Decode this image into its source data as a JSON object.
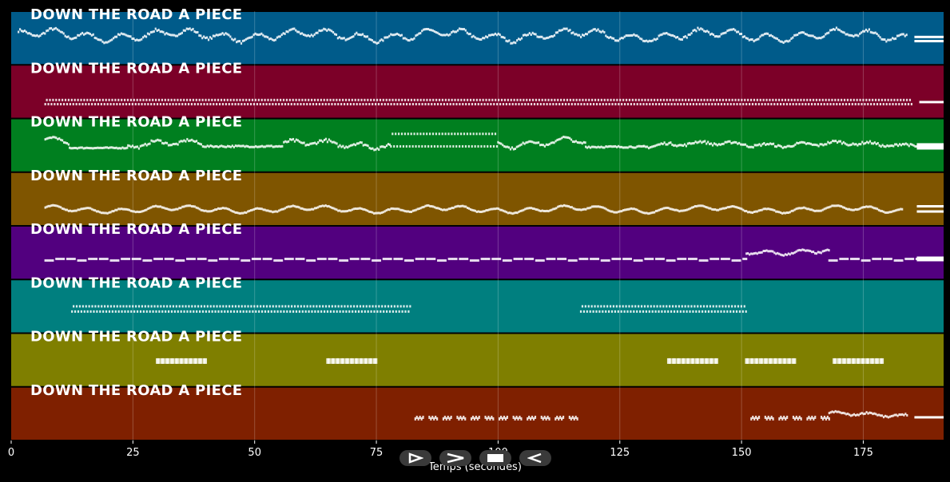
{
  "chart_data": {
    "type": "scatter",
    "xlabel": "Temps (secondes)",
    "xlim": [
      0,
      191.5
    ],
    "xticks": [
      0,
      25,
      50,
      75,
      100,
      125,
      150,
      175
    ],
    "grid": true,
    "lanes": [
      {
        "title": "DOWN THE ROAD A PIECE",
        "color": "#005b8a",
        "segments": [
          [
            1.5,
            184,
            0.55,
            0.12,
            0.4,
            1
          ]
        ],
        "tail": [
          [
            185.5,
            191.5,
            0.52
          ],
          [
            185.5,
            191.5,
            0.44
          ]
        ]
      },
      {
        "title": "DOWN THE ROAD A PIECE",
        "color": "#7c0028",
        "segments": [
          [
            7,
            185,
            0.3,
            0.04,
            0.6,
            2
          ]
        ],
        "tail": [
          [
            186.5,
            191.5,
            0.3
          ]
        ]
      },
      {
        "title": "DOWN THE ROAD A PIECE",
        "color": "#007f1f",
        "segments": [
          [
            7,
            12,
            0.55,
            0.1,
            0.3,
            1
          ],
          [
            12,
            24,
            0.45,
            0.02,
            0.5,
            3
          ],
          [
            24,
            40,
            0.52,
            0.08,
            0.6,
            1
          ],
          [
            40,
            56,
            0.48,
            0.03,
            0.3,
            3
          ],
          [
            56,
            78,
            0.52,
            0.08,
            0.7,
            1
          ],
          [
            78,
            100,
            0.6,
            0.12,
            0.5,
            2
          ],
          [
            100,
            118,
            0.55,
            0.1,
            0.4,
            1
          ],
          [
            118,
            130,
            0.47,
            0.03,
            0.5,
            3
          ],
          [
            130,
            186,
            0.52,
            0.05,
            0.9,
            1
          ]
        ],
        "tail": [
          [
            186,
            191.5,
            0.48
          ]
        ],
        "tailWidth": 8
      },
      {
        "title": "DOWN THE ROAD A PIECE",
        "color": "#7f5500",
        "segments": [
          [
            7,
            183,
            0.3,
            0.07,
            0.2,
            1
          ]
        ],
        "tail": [
          [
            186,
            191.5,
            0.36
          ],
          [
            186,
            191.5,
            0.26
          ]
        ]
      },
      {
        "title": "DOWN THE ROAD A PIECE",
        "color": "#52007f",
        "segments": [
          [
            7,
            151,
            0.38,
            0.03,
            0.0,
            4
          ],
          [
            151,
            168,
            0.52,
            0.06,
            0.5,
            1
          ],
          [
            168,
            186,
            0.38,
            0.03,
            0.0,
            4
          ]
        ],
        "tail": [
          [
            186,
            191.5,
            0.38
          ]
        ],
        "tailWidth": 6
      },
      {
        "title": "DOWN THE ROAD A PIECE",
        "color": "#007f7f",
        "segments": [
          [
            12.5,
            82,
            0.45,
            0.05,
            0.3,
            2
          ],
          [
            117,
            151,
            0.45,
            0.05,
            0.3,
            2
          ]
        ],
        "tail": []
      },
      {
        "title": "DOWN THE ROAD A PIECE",
        "color": "#7f7f00",
        "segments": [
          [
            30,
            40,
            0.48,
            0.0,
            0.0,
            5
          ],
          [
            65,
            75,
            0.48,
            0.0,
            0.0,
            5
          ],
          [
            135,
            145,
            0.48,
            0.0,
            0.0,
            5
          ],
          [
            151,
            161,
            0.48,
            0.0,
            0.0,
            5
          ],
          [
            169,
            179,
            0.48,
            0.0,
            0.0,
            5
          ]
        ],
        "tail": []
      },
      {
        "title": "DOWN THE ROAD A PIECE",
        "color": "#7f2000",
        "segments": [
          [
            83,
            117,
            0.4,
            0.03,
            0.0,
            6
          ],
          [
            152,
            168,
            0.4,
            0.03,
            0.0,
            6
          ],
          [
            168,
            184,
            0.48,
            0.05,
            0.6,
            1
          ]
        ],
        "tail": [
          [
            185.5,
            191.5,
            0.43
          ]
        ]
      }
    ]
  },
  "controls": [
    {
      "name": "play-icon"
    },
    {
      "name": "forward-icon"
    },
    {
      "name": "stop-icon"
    },
    {
      "name": "rewind-icon"
    }
  ]
}
